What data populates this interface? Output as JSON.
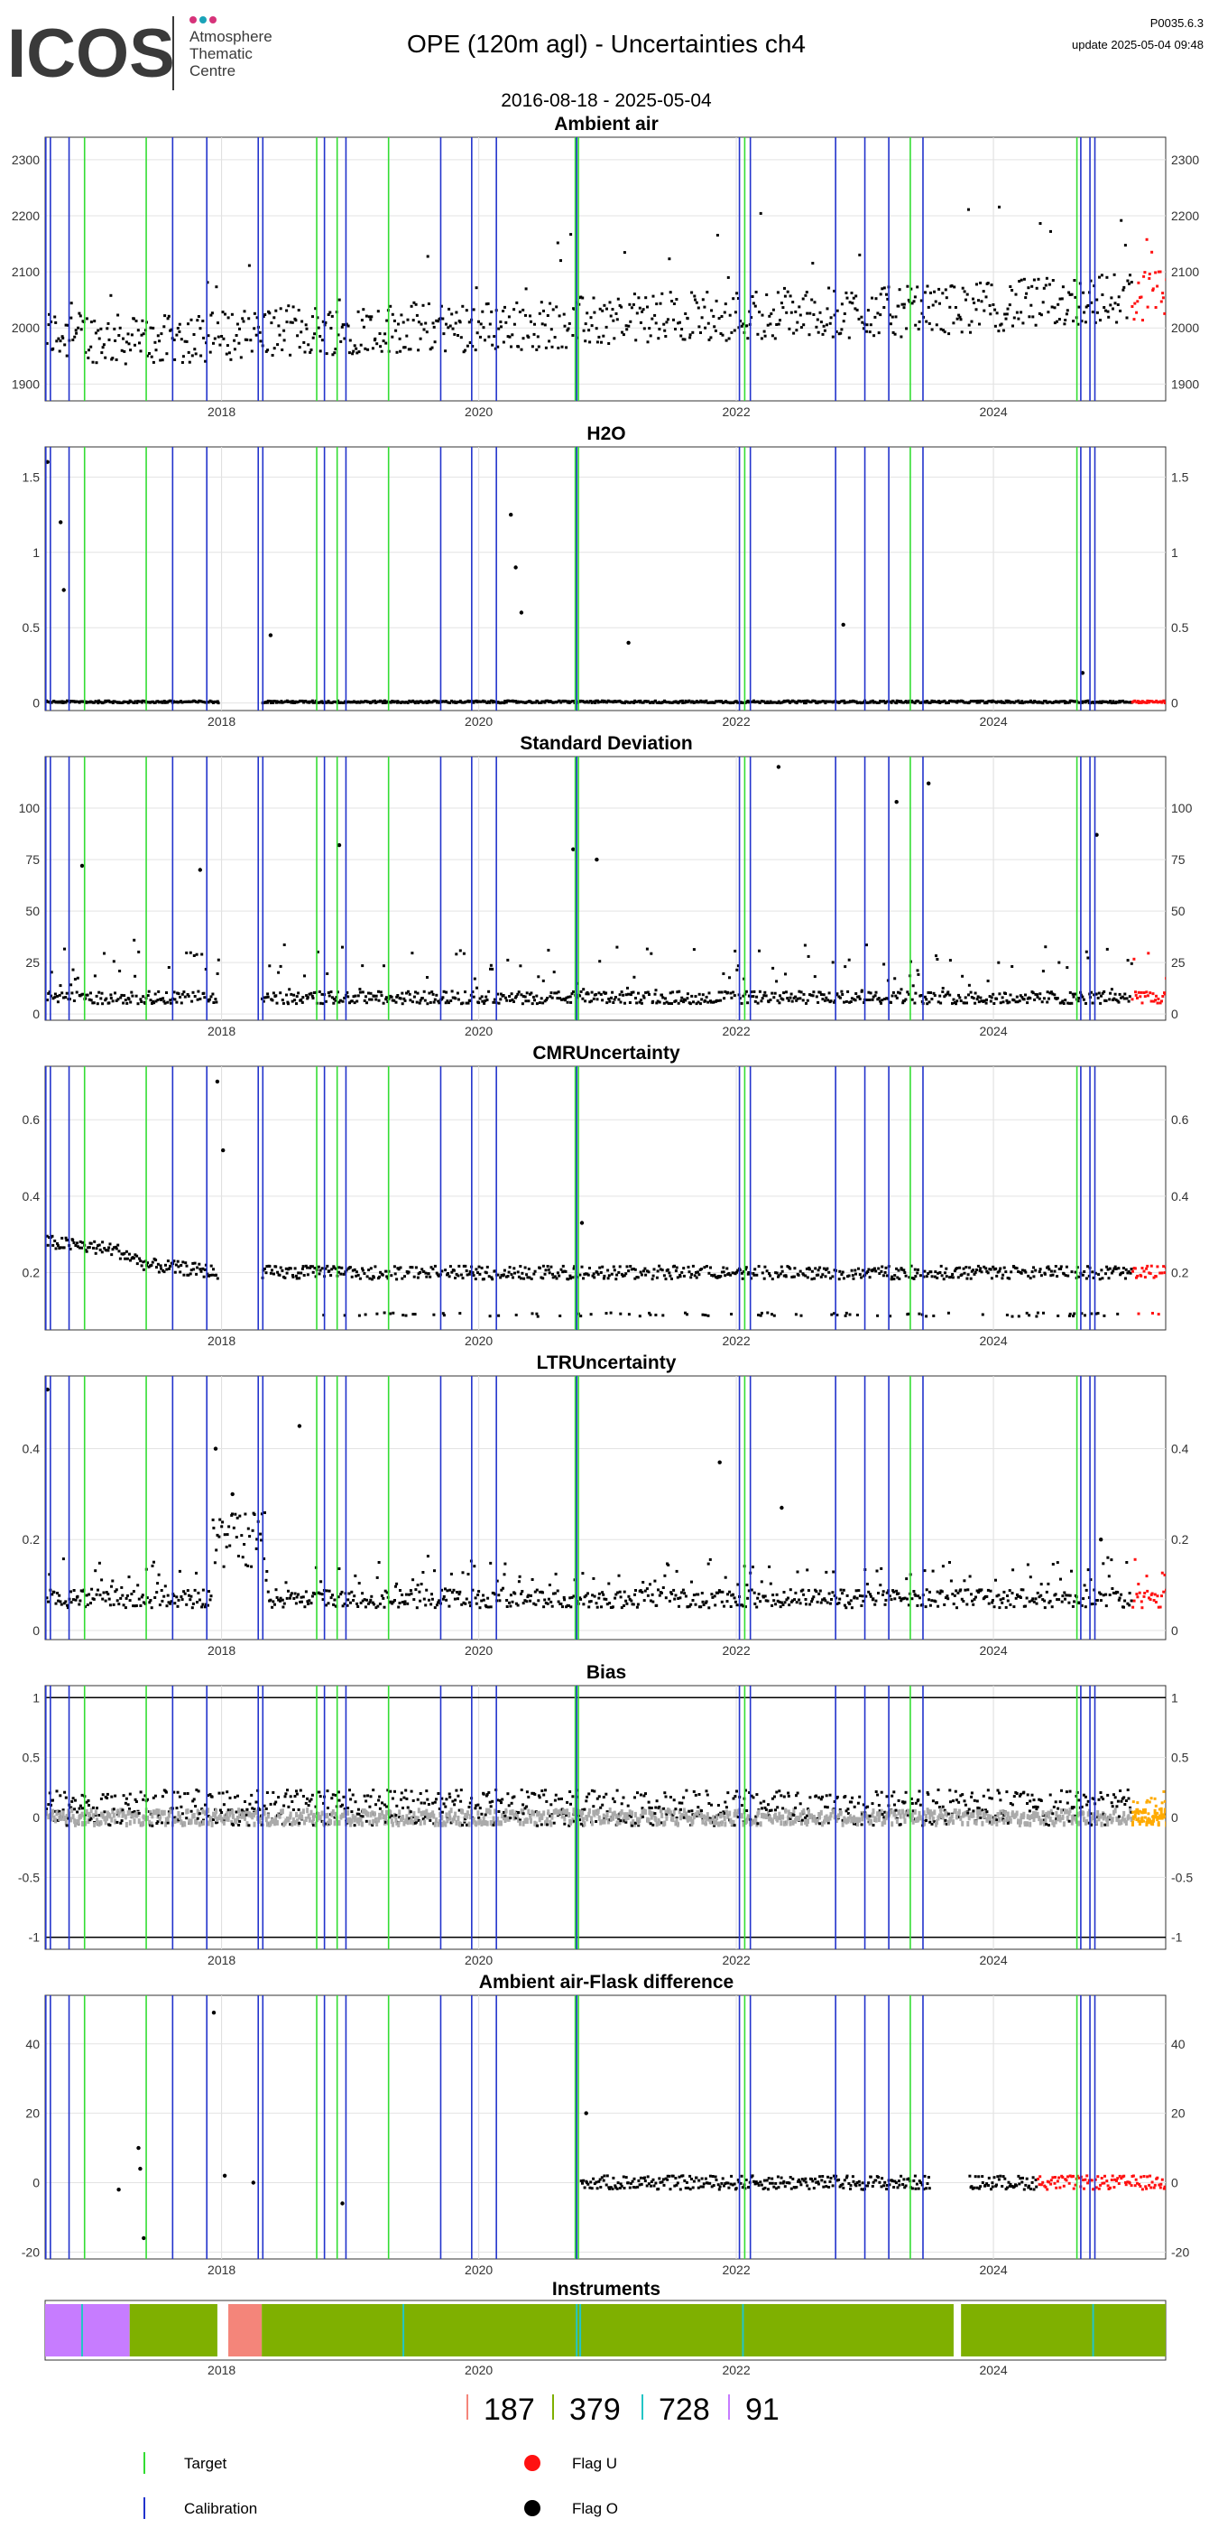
{
  "header": {
    "logo_word": "ICOS",
    "logo_lines": [
      "Atmosphere",
      "Thematic",
      "Centre"
    ],
    "title": "OPE  (120m agl) - Uncertainties ch4",
    "date_range": "2016-08-18 - 2025-05-04",
    "version": "P0035.6.3",
    "update": "update  2025-05-04 09:48"
  },
  "colors": {
    "target_line": "#33dd33",
    "calibration_line": "#2233cc",
    "flag_u": "#ff1111",
    "flag_o": "#000000",
    "bias_secondary": "#aaaaaa",
    "bias_recent": "#ffaa00",
    "logo_dots": [
      "#d6337a",
      "#1aa3b8",
      "#d6337a"
    ],
    "instrument_colors": [
      "#f4857a",
      "#7fb000",
      "#23c5c5",
      "#c77cff"
    ]
  },
  "chart_data": {
    "x_range": [
      "2016-08-18",
      "2025-05-04"
    ],
    "x_ticks": [
      "2018",
      "2020",
      "2022",
      "2024"
    ],
    "target_dates": [
      "2016-12-08",
      "2017-06-01",
      "2018-09-28",
      "2018-11-25",
      "2019-04-20",
      "2020-10-01",
      "2020-10-10",
      "2022-01-25",
      "2023-05-10",
      "2024-08-25"
    ],
    "calibration_dates": [
      "2016-08-20",
      "2016-09-02",
      "2016-10-25",
      "2017-08-15",
      "2017-11-20",
      "2018-04-15",
      "2018-04-28",
      "2018-10-20",
      "2018-12-20",
      "2019-09-15",
      "2019-12-12",
      "2020-02-20",
      "2020-10-05",
      "2022-01-10",
      "2022-02-10",
      "2022-10-10",
      "2023-01-01",
      "2023-03-10",
      "2023-06-15",
      "2024-09-05",
      "2024-10-01",
      "2024-10-15"
    ],
    "panels": [
      {
        "title": "Ambient air",
        "type": "scatter",
        "ylim": [
          1870,
          2340
        ],
        "y_ticks": [
          1900,
          2000,
          2100,
          2200,
          2300
        ],
        "mean_by_year": [
          [
            "2016-08-18",
            1990
          ],
          [
            "2017-06-01",
            1975
          ],
          [
            "2018-06-01",
            1995
          ],
          [
            "2019-06-01",
            2000
          ],
          [
            "2020-06-01",
            2005
          ],
          [
            "2021-06-01",
            2020
          ],
          [
            "2022-06-01",
            2025
          ],
          [
            "2023-06-01",
            2030
          ],
          [
            "2024-06-01",
            2045
          ],
          [
            "2025-05-04",
            2060
          ]
        ],
        "spread": 45
      },
      {
        "title": "H2O",
        "type": "scatter",
        "ylim": [
          -0.05,
          1.7
        ],
        "y_ticks": [
          0.0,
          0.5,
          1.0,
          1.5
        ],
        "baseline": 0.0,
        "notable_points": [
          [
            "2016-08-25",
            1.6
          ],
          [
            "2016-10-01",
            1.2
          ],
          [
            "2016-10-10",
            0.75
          ],
          [
            "2018-05-20",
            0.45
          ],
          [
            "2020-04-01",
            1.25
          ],
          [
            "2020-04-15",
            0.9
          ],
          [
            "2020-05-01",
            0.6
          ],
          [
            "2021-03-01",
            0.4
          ],
          [
            "2022-11-01",
            0.52
          ],
          [
            "2024-09-10",
            0.2
          ]
        ]
      },
      {
        "title": "Standard Deviation",
        "type": "scatter",
        "ylim": [
          -3,
          125
        ],
        "y_ticks": [
          0,
          25,
          50,
          75,
          100
        ],
        "baseline": 5,
        "notable_points": [
          [
            "2016-12-01",
            72
          ],
          [
            "2017-11-01",
            70
          ],
          [
            "2018-12-01",
            82
          ],
          [
            "2020-09-25",
            80
          ],
          [
            "2020-12-01",
            75
          ],
          [
            "2022-05-01",
            120
          ],
          [
            "2023-04-01",
            103
          ],
          [
            "2023-07-01",
            112
          ],
          [
            "2024-10-20",
            87
          ]
        ]
      },
      {
        "title": "CMRUncertainty",
        "type": "scatter",
        "ylim": [
          0.05,
          0.74
        ],
        "y_ticks": [
          0.2,
          0.4,
          0.6
        ],
        "levels": [
          [
            "2016-08-18",
            0.28
          ],
          [
            "2017-03-01",
            0.26
          ],
          [
            "2017-06-01",
            0.22
          ],
          [
            "2018-01-01",
            0.2
          ],
          [
            "2025-05-04",
            0.2
          ]
        ],
        "secondary_level": 0.09,
        "notable_points": [
          [
            "2017-12-20",
            0.7
          ],
          [
            "2018-01-05",
            0.52
          ],
          [
            "2020-10-20",
            0.33
          ]
        ]
      },
      {
        "title": "LTRUncertainty",
        "type": "scatter",
        "ylim": [
          -0.02,
          0.56
        ],
        "y_ticks": [
          0.0,
          0.2,
          0.4
        ],
        "baseline": 0.05,
        "notable_points": [
          [
            "2016-08-25",
            0.53
          ],
          [
            "2017-12-15",
            0.4
          ],
          [
            "2018-02-01",
            0.3
          ],
          [
            "2018-08-10",
            0.45
          ],
          [
            "2021-11-15",
            0.37
          ],
          [
            "2022-05-10",
            0.27
          ],
          [
            "2024-11-01",
            0.2
          ]
        ]
      },
      {
        "title": "Bias",
        "type": "scatter",
        "ylim": [
          -1.1,
          1.1
        ],
        "y_ticks": [
          -1.0,
          -0.5,
          0.0,
          0.5,
          1.0
        ],
        "hlines": [
          -1.0,
          1.0
        ],
        "baseline": 0.08,
        "secondary_level": 0.0
      },
      {
        "title": "Ambient air-Flask difference",
        "type": "scatter",
        "ylim": [
          -22,
          54
        ],
        "y_ticks": [
          -20,
          0,
          20,
          40
        ],
        "baseline": 0,
        "notable_points": [
          [
            "2017-12-10",
            49
          ],
          [
            "2020-11-01",
            20
          ],
          [
            "2017-05-10",
            10
          ],
          [
            "2017-05-15",
            4
          ],
          [
            "2017-03-15",
            -2
          ],
          [
            "2017-05-25",
            -16
          ],
          [
            "2018-01-10",
            2
          ],
          [
            "2018-04-01",
            0
          ],
          [
            "2018-12-10",
            -6
          ]
        ]
      }
    ],
    "instruments": {
      "title": "Instruments",
      "segments": [
        {
          "color": 3,
          "start": "2016-08-18",
          "end": "2017-04-15"
        },
        {
          "color": 1,
          "start": "2017-04-15",
          "end": "2017-12-20"
        },
        {
          "color": 0,
          "start": "2018-01-20",
          "end": "2018-04-25"
        },
        {
          "color": 1,
          "start": "2018-04-25",
          "end": "2023-09-10"
        },
        {
          "color": 1,
          "start": "2023-10-01",
          "end": "2025-05-04"
        }
      ],
      "marks": [
        {
          "color": 2,
          "date": "2016-12-01"
        },
        {
          "color": 2,
          "date": "2019-06-01"
        },
        {
          "color": 2,
          "date": "2020-10-05"
        },
        {
          "color": 2,
          "date": "2020-10-15"
        },
        {
          "color": 2,
          "date": "2022-01-20"
        },
        {
          "color": 2,
          "date": "2024-10-10"
        }
      ]
    },
    "instrument_counts": [
      {
        "color": 0,
        "label": "187"
      },
      {
        "color": 1,
        "label": "379"
      },
      {
        "color": 2,
        "label": "728"
      },
      {
        "color": 3,
        "label": "91"
      }
    ],
    "legend": [
      {
        "kind": "line",
        "color_key": "target_line",
        "label": "Target"
      },
      {
        "kind": "line",
        "color_key": "calibration_line",
        "label": "Calibration"
      },
      {
        "kind": "dot",
        "color_key": "flag_u",
        "label": "Flag U"
      },
      {
        "kind": "dot",
        "color_key": "flag_o",
        "label": "Flag O"
      }
    ]
  }
}
